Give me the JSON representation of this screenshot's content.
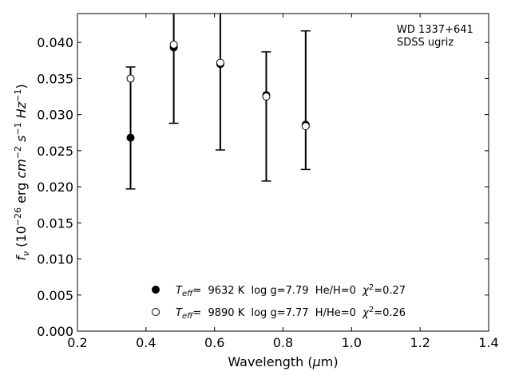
{
  "chart_data": {
    "type": "scatter",
    "xlabel": "Wavelength (μm)",
    "ylabel": "f_ν (10^-26 erg cm^-2 s^-1 Hz^-1)",
    "xlim": [
      0.2,
      1.4
    ],
    "ylim": [
      0.0,
      0.044
    ],
    "xticks": [
      "0.2",
      "0.4",
      "0.6",
      "0.8",
      "1.0",
      "1.2",
      "1.4"
    ],
    "yticks": [
      "0.000",
      "0.005",
      "0.010",
      "0.015",
      "0.020",
      "0.025",
      "0.030",
      "0.035",
      "0.040"
    ],
    "annotation": [
      "WD 1337+641",
      "SDSS ugriz"
    ],
    "observed": {
      "x": [
        0.355,
        0.481,
        0.617,
        0.751,
        0.866
      ],
      "y_low": [
        0.0197,
        0.0288,
        0.0251,
        0.0208,
        0.0224
      ],
      "y_high": [
        0.0366,
        0.0445,
        0.0445,
        0.0387,
        0.0416
      ]
    },
    "series": [
      {
        "name": "Teff= 9632 K log g=7.79 He/H=0 χ²=0.27",
        "marker": "filled",
        "x": [
          0.355,
          0.481,
          0.617,
          0.751,
          0.866
        ],
        "y": [
          0.0268,
          0.0393,
          0.037,
          0.0327,
          0.0286
        ]
      },
      {
        "name": "Teff= 9890 K log g=7.77 H/He=0 χ²=0.26",
        "marker": "open",
        "x": [
          0.355,
          0.481,
          0.617,
          0.751,
          0.866
        ],
        "y": [
          0.035,
          0.0397,
          0.0372,
          0.0325,
          0.0284
        ]
      }
    ],
    "legend_position": "bottom-center",
    "grid": false
  },
  "legend": {
    "items": [
      {
        "teff_label": "=  9632 K  log g=7.79  He/H=0  ",
        "chi_value": "=0.27"
      },
      {
        "teff_label": "=  9890 K  log g=7.77  H/He=0  ",
        "chi_value": "=0.26"
      }
    ]
  },
  "colors": {
    "line": "#000000",
    "background": "#ffffff"
  }
}
